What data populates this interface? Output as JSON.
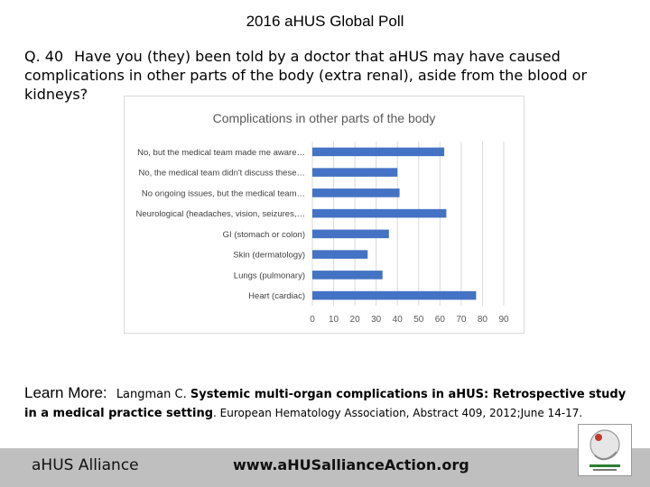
{
  "slide": {
    "title": "2016 aHUS Global Poll",
    "question_number": "Q. 40",
    "question_text": "Have you (they) been told by a doctor that aHUS may have caused complications in other parts of the body (extra renal), aside from the blood or kidneys?"
  },
  "learn_more": {
    "label": "Learn More:",
    "author": "Langman C.",
    "title": "Systemic multi-organ complications in aHUS: Retrospective study in a medical practice setting",
    "journal": ". European Hematology Association, Abstract 409, 2012;June 14-17."
  },
  "footer": {
    "org": "aHUS Alliance",
    "website": "www.aHUSallianceAction.org"
  },
  "colors": {
    "bar": "#4472c4",
    "gridline": "#d9d9d9",
    "footer_bg": "#bfbfbf"
  },
  "chart_data": {
    "type": "bar",
    "orientation": "horizontal",
    "title": "Complications in other parts of the body",
    "categories": [
      "No, but the medical team made me aware…",
      "No, the medical team didn't discuss these…",
      "No ongoing issues, but the medical team…",
      "Neurological  (headaches, vision, seizures,…",
      "GI (stomach or colon)",
      "Skin (dermatology)",
      "Lungs (pulmonary)",
      "Heart  (cardiac)"
    ],
    "values": [
      62,
      40,
      41,
      63,
      36,
      26,
      33,
      77
    ],
    "xlim": [
      0,
      90
    ],
    "xticks": [
      0,
      10,
      20,
      30,
      40,
      50,
      60,
      70,
      80,
      90
    ],
    "grid": true,
    "legend": "none"
  }
}
